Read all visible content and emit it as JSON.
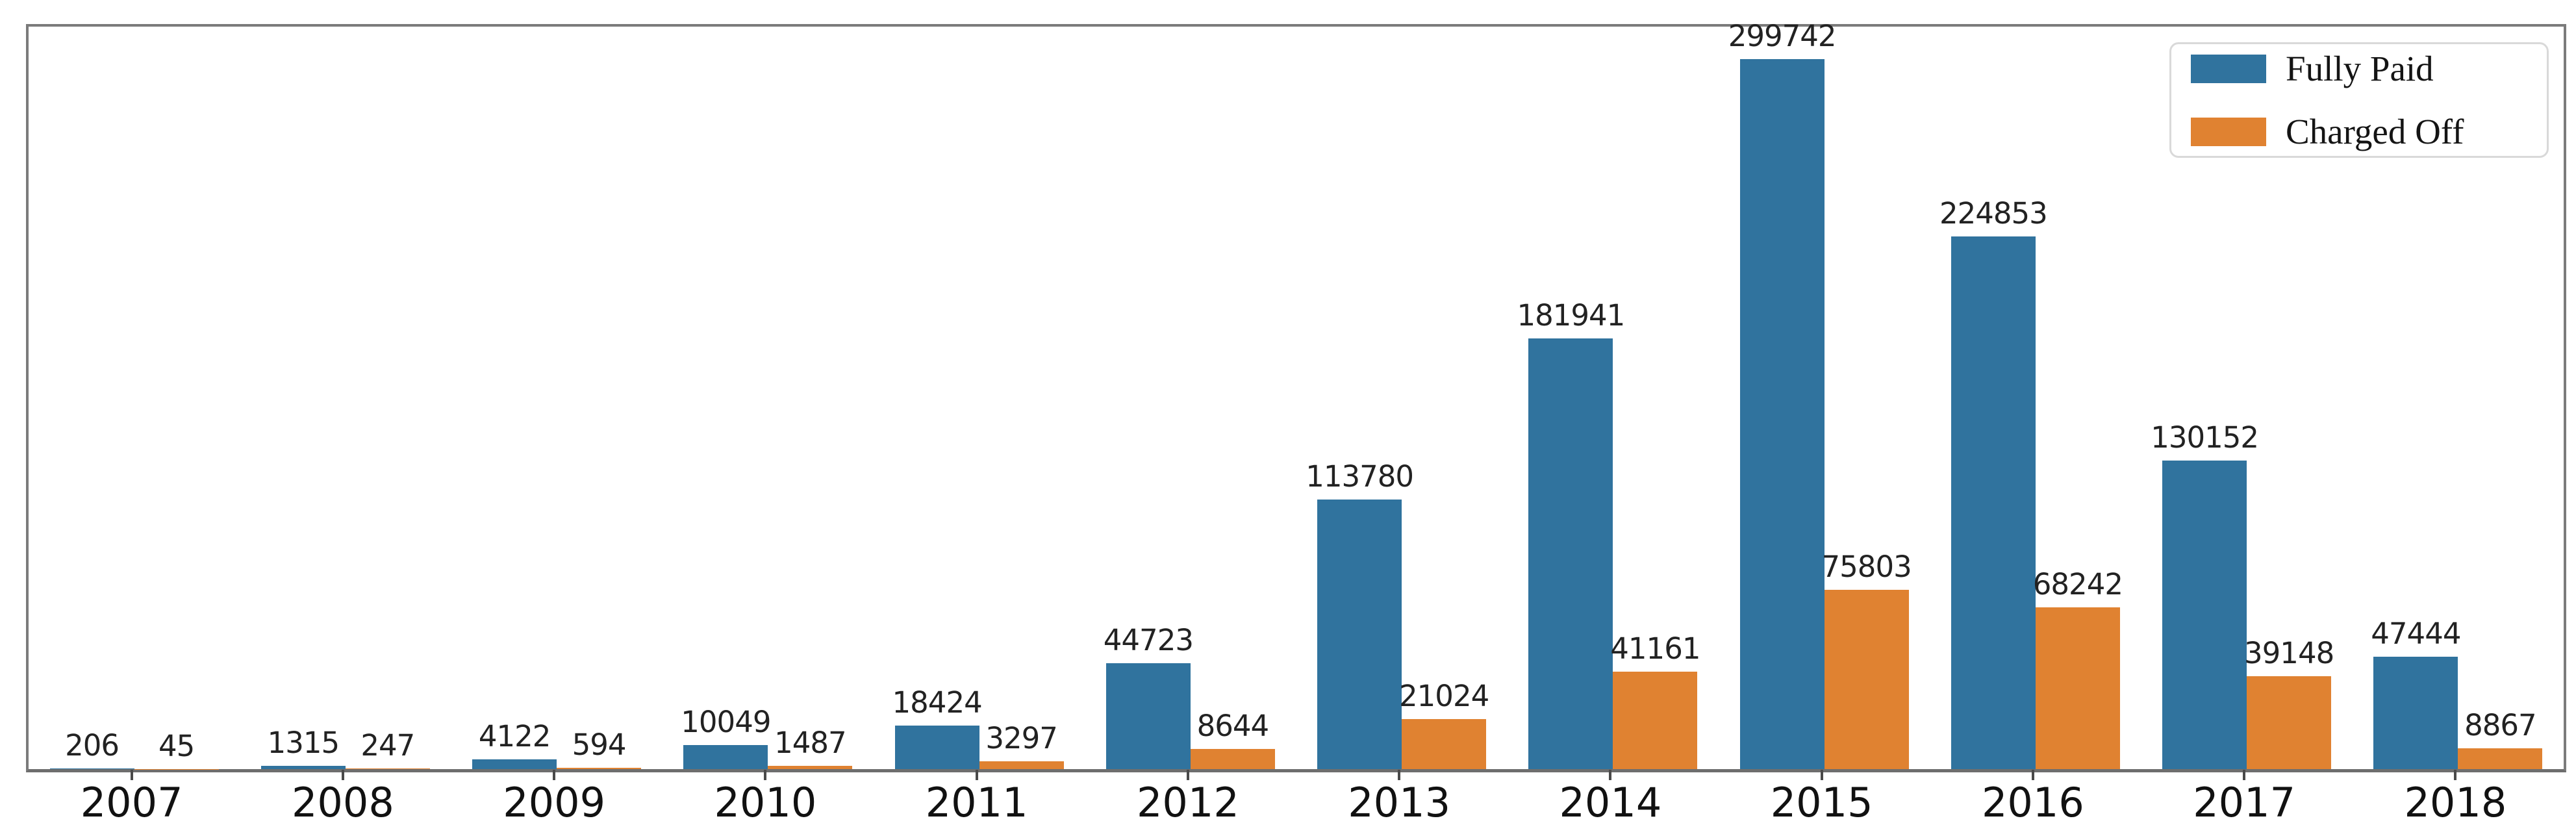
{
  "chart_data": {
    "type": "bar",
    "title": "",
    "xlabel": "",
    "ylabel": "",
    "categories": [
      "2007",
      "2008",
      "2009",
      "2010",
      "2011",
      "2012",
      "2013",
      "2014",
      "2015",
      "2016",
      "2017",
      "2018"
    ],
    "series": [
      {
        "name": "Fully Paid",
        "color": "#30739e",
        "values": [
          206,
          1315,
          4122,
          10049,
          18424,
          44723,
          113780,
          181941,
          299742,
          224853,
          130152,
          47444
        ]
      },
      {
        "name": "Charged Off",
        "color": "#e08231",
        "values": [
          45,
          247,
          594,
          1487,
          3297,
          8644,
          21024,
          41161,
          75803,
          68242,
          39148,
          8867
        ]
      }
    ],
    "bar_value_labels": true,
    "grid": false,
    "ylim": [
      0,
      313500
    ],
    "legend_position": "upper right",
    "axis_color": "#7b7b7b",
    "label_color": "#222222"
  }
}
